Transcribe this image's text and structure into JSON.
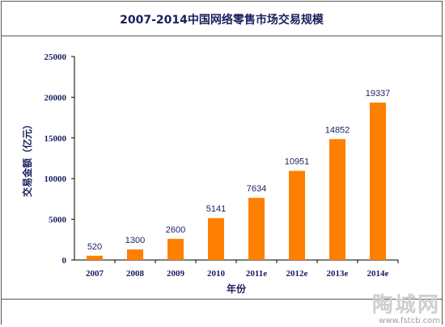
{
  "title": "2007-2014中国网络零售市场交易规模",
  "watermark": {
    "name": "陶城网",
    "url": "www.fstcb.com"
  },
  "chart_data": {
    "type": "bar",
    "title": "2007-2014中国网络零售市场交易规模",
    "xlabel": "年份",
    "ylabel": "交易金额（亿元）",
    "categories": [
      "2007",
      "2008",
      "2009",
      "2010",
      "2011e",
      "2012e",
      "2013e",
      "2014e"
    ],
    "values": [
      520,
      1300,
      2600,
      5141,
      7634,
      10951,
      14852,
      19337
    ],
    "ylim": [
      0,
      25000
    ],
    "yticks": [
      0,
      5000,
      10000,
      15000,
      20000,
      25000
    ],
    "bar_color": "#ff7f00",
    "grid": false,
    "legend": "none"
  }
}
